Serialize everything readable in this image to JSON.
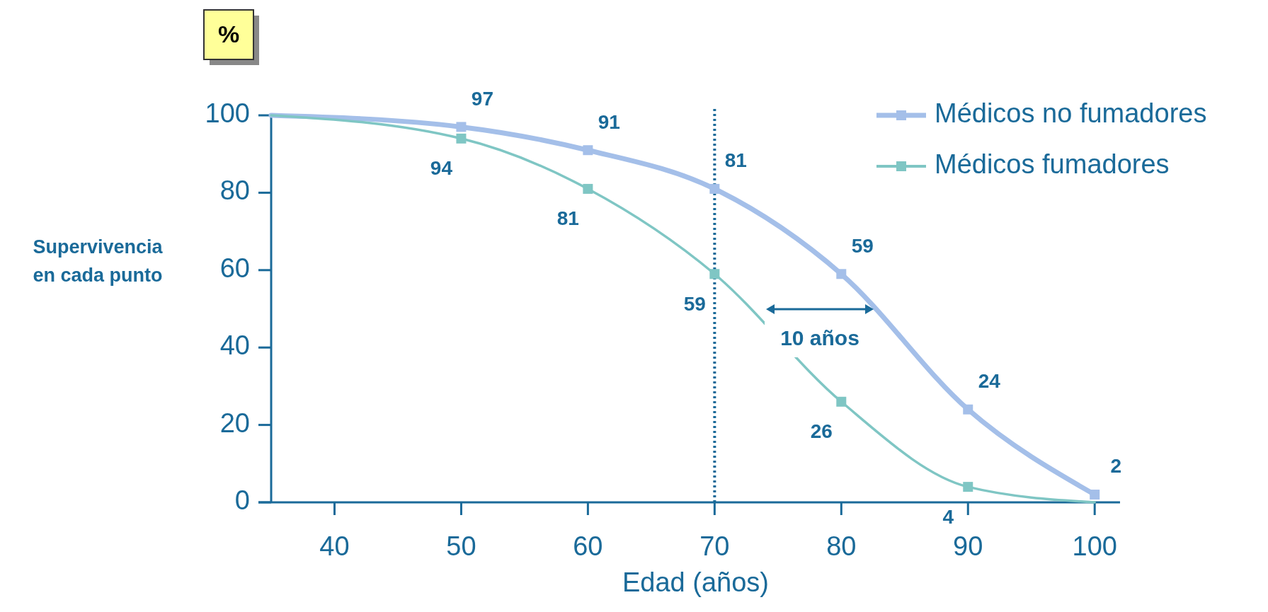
{
  "chart_data": {
    "type": "line",
    "xlabel": "Edad (años)",
    "ylabel": "Supervivencia en cada punto",
    "x": [
      35,
      50,
      60,
      70,
      80,
      90,
      100
    ],
    "series": [
      {
        "name": "Médicos no fumadores",
        "color": "#a4bfe9",
        "values": [
          100,
          97,
          91,
          81,
          59,
          24,
          2
        ],
        "value_labels": [
          null,
          "97",
          "91",
          "81",
          "59",
          "24",
          "2"
        ]
      },
      {
        "name": "Médicos fumadores",
        "color": "#7fc6c4",
        "values": [
          100,
          94,
          81,
          59,
          26,
          4,
          0
        ],
        "value_labels": [
          null,
          "94",
          "81",
          "59",
          "26",
          "4",
          null
        ]
      }
    ],
    "xlim": [
      35,
      102
    ],
    "ylim": [
      0,
      100
    ],
    "xticks": [
      40,
      50,
      60,
      70,
      80,
      90,
      100
    ],
    "yticks": [
      0,
      20,
      40,
      60,
      80,
      100
    ],
    "marker": "square",
    "legend": "top right",
    "grid": false,
    "ref_lines": [
      {
        "axis": "x",
        "value": 70,
        "color": "#1a6a99",
        "line_style": "dotted"
      }
    ],
    "annotations": [
      "%",
      "10 años"
    ]
  }
}
